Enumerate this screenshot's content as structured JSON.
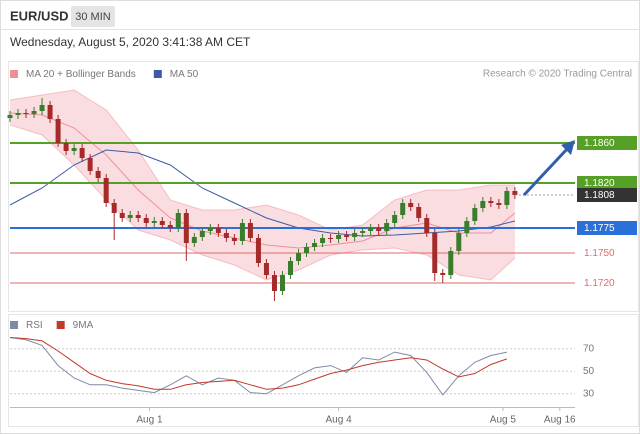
{
  "header": {
    "symbol": "EUR/USD",
    "timeframe": "30 MIN",
    "datetime": "Wednesday, August 5, 2020 3:41:38 AM CET"
  },
  "chart_data": [
    {
      "type": "candlestick",
      "annotation": "Research © 2020 Trading Central",
      "xlim": [
        0,
        70.5
      ],
      "ylim": [
        1.1698,
        1.1918
      ],
      "up_color": "#3a7d2c",
      "down_color": "#a52a2a",
      "candles": {
        "x": [
          0,
          1,
          2,
          3,
          4,
          5,
          6,
          7,
          8,
          9,
          10,
          11,
          12,
          13,
          14,
          15,
          16,
          17,
          18,
          19,
          20,
          21,
          22,
          23,
          24,
          25,
          26,
          27,
          28,
          29,
          30,
          31,
          32,
          33,
          34,
          35,
          36,
          37,
          38,
          39,
          40,
          41,
          42,
          43,
          44,
          45,
          46,
          47,
          48,
          49,
          50,
          51,
          52,
          53,
          54,
          55,
          56,
          57,
          58,
          59,
          60,
          61,
          62,
          63
        ],
        "open": [
          1.1885,
          1.1888,
          1.189,
          1.1889,
          1.1892,
          1.1898,
          1.1884,
          1.186,
          1.1852,
          1.1855,
          1.1845,
          1.1832,
          1.1825,
          1.18,
          1.179,
          1.1785,
          1.1788,
          1.1785,
          1.178,
          1.1782,
          1.1778,
          1.1775,
          1.179,
          1.176,
          1.1766,
          1.1772,
          1.1775,
          1.177,
          1.1765,
          1.1762,
          1.178,
          1.1765,
          1.174,
          1.1728,
          1.1712,
          1.1728,
          1.1742,
          1.175,
          1.1756,
          1.176,
          1.1765,
          1.1764,
          1.1768,
          1.1766,
          1.177,
          1.1772,
          1.1775,
          1.1772,
          1.178,
          1.1788,
          1.18,
          1.1796,
          1.1785,
          1.177,
          1.173,
          1.1728,
          1.1752,
          1.177,
          1.1782,
          1.1795,
          1.1802,
          1.18,
          1.1798,
          1.1812
        ],
        "high": [
          1.1892,
          1.1894,
          1.1894,
          1.1896,
          1.1905,
          1.1902,
          1.1888,
          1.1864,
          1.1859,
          1.1859,
          1.1849,
          1.1836,
          1.1829,
          1.1804,
          1.1794,
          1.1792,
          1.1792,
          1.1789,
          1.1786,
          1.1786,
          1.1782,
          1.1794,
          1.1794,
          1.177,
          1.1776,
          1.1779,
          1.1779,
          1.1774,
          1.1769,
          1.1784,
          1.1784,
          1.1769,
          1.1744,
          1.1732,
          1.1732,
          1.1746,
          1.1754,
          1.176,
          1.1764,
          1.1769,
          1.1769,
          1.1772,
          1.1772,
          1.1774,
          1.1776,
          1.1779,
          1.1779,
          1.1784,
          1.1792,
          1.1804,
          1.1804,
          1.18,
          1.1789,
          1.1774,
          1.1734,
          1.1756,
          1.1774,
          1.1786,
          1.1799,
          1.1806,
          1.1806,
          1.1804,
          1.1816,
          1.1816
        ],
        "low": [
          1.1881,
          1.1884,
          1.1885,
          1.1885,
          1.1888,
          1.188,
          1.1856,
          1.1848,
          1.1848,
          1.1841,
          1.1828,
          1.1821,
          1.1796,
          1.1763,
          1.1781,
          1.1781,
          1.1781,
          1.1776,
          1.1776,
          1.1774,
          1.1771,
          1.1771,
          1.1742,
          1.1756,
          1.1762,
          1.1768,
          1.1766,
          1.1761,
          1.1758,
          1.1758,
          1.1761,
          1.1736,
          1.1724,
          1.1702,
          1.1708,
          1.1724,
          1.1738,
          1.1746,
          1.1752,
          1.1756,
          1.176,
          1.176,
          1.1762,
          1.1762,
          1.1766,
          1.1768,
          1.1768,
          1.1768,
          1.1776,
          1.1784,
          1.1792,
          1.1781,
          1.1766,
          1.1722,
          1.172,
          1.1724,
          1.1748,
          1.1766,
          1.1778,
          1.1791,
          1.1796,
          1.1794,
          1.1794,
          1.1804
        ],
        "close": [
          1.1888,
          1.189,
          1.1889,
          1.1892,
          1.1898,
          1.1884,
          1.186,
          1.1852,
          1.1855,
          1.1845,
          1.1832,
          1.1825,
          1.18,
          1.179,
          1.1785,
          1.1788,
          1.1785,
          1.178,
          1.1782,
          1.1778,
          1.1775,
          1.179,
          1.176,
          1.1766,
          1.1772,
          1.1775,
          1.177,
          1.1765,
          1.1762,
          1.178,
          1.1765,
          1.174,
          1.1728,
          1.1712,
          1.1728,
          1.1742,
          1.175,
          1.1756,
          1.176,
          1.1765,
          1.1764,
          1.1768,
          1.1766,
          1.177,
          1.1772,
          1.1775,
          1.1772,
          1.178,
          1.1788,
          1.18,
          1.1796,
          1.1785,
          1.177,
          1.173,
          1.1728,
          1.1752,
          1.177,
          1.1782,
          1.1795,
          1.1802,
          1.18,
          1.1798,
          1.1812,
          1.1808
        ]
      },
      "series": [
        {
          "name": "MA 20 + Bollinger Bands",
          "color": "#f08f99",
          "x": [
            0,
            4,
            8,
            12,
            16,
            20,
            24,
            28,
            32,
            36,
            40,
            44,
            48,
            52,
            56,
            60,
            63
          ],
          "values": [
            1.189,
            1.1888,
            1.1875,
            1.1848,
            1.1813,
            1.1785,
            1.1772,
            1.1765,
            1.1758,
            1.1755,
            1.1758,
            1.1762,
            1.1775,
            1.178,
            1.177,
            1.177,
            1.179
          ],
          "upper": [
            1.1903,
            1.1908,
            1.1913,
            1.1893,
            1.1853,
            1.1803,
            1.1793,
            1.1793,
            1.1798,
            1.1788,
            1.1773,
            1.1778,
            1.1803,
            1.1813,
            1.1813,
            1.1818,
            1.1818
          ],
          "lower": [
            1.1878,
            1.1868,
            1.1838,
            1.1803,
            1.1773,
            1.1763,
            1.1748,
            1.1738,
            1.1723,
            1.1733,
            1.1748,
            1.1753,
            1.1755,
            1.1748,
            1.1728,
            1.1723,
            1.1745
          ]
        },
        {
          "name": "MA 50",
          "color": "#3b5ba5",
          "x": [
            0,
            4,
            8,
            12,
            16,
            20,
            24,
            28,
            32,
            36,
            40,
            44,
            48,
            52,
            56,
            60,
            63
          ],
          "values": [
            1.1798,
            1.1815,
            1.1838,
            1.1853,
            1.185,
            1.1838,
            1.1815,
            1.18,
            1.1785,
            1.1775,
            1.177,
            1.1767,
            1.1768,
            1.177,
            1.1772,
            1.1776,
            1.1782
          ]
        }
      ],
      "levels": [
        {
          "value": 1.186,
          "label": "1.1860",
          "color": "#56a027",
          "boxed": true
        },
        {
          "value": 1.182,
          "label": "1.1820",
          "color": "#56a027",
          "boxed": true
        },
        {
          "value": 1.1775,
          "label": "1.1775",
          "color": "#2b6fd8",
          "boxed": true
        },
        {
          "value": 1.175,
          "label": "1.1750",
          "color": "#e06a6a",
          "boxed": false
        },
        {
          "value": 1.172,
          "label": "1.1720",
          "color": "#e06a6a",
          "boxed": false
        }
      ],
      "last": {
        "value": 1.1808,
        "label": "1.1808",
        "color": "#333333"
      }
    },
    {
      "type": "line",
      "xlim": [
        0,
        70.5
      ],
      "ylim": [
        20,
        84
      ],
      "yticks": [
        70,
        50,
        30
      ],
      "xticks": [
        {
          "value": 17.4,
          "label": "Aug 1"
        },
        {
          "value": 41,
          "label": "Aug 4"
        },
        {
          "value": 61.5,
          "label": "Aug 5"
        },
        {
          "value": 68.6,
          "label": "Aug 16"
        }
      ],
      "series": [
        {
          "name": "RSI",
          "color": "#7f8aa6",
          "x": [
            0,
            2,
            4,
            6,
            8,
            10,
            12,
            14,
            16,
            18,
            20,
            22,
            24,
            26,
            28,
            30,
            32,
            34,
            36,
            38,
            40,
            42,
            44,
            46,
            48,
            50,
            52,
            54,
            56,
            58,
            60,
            62
          ],
          "values": [
            80,
            78,
            73,
            55,
            44,
            38,
            38,
            35,
            33,
            31,
            38,
            46,
            38,
            44,
            42,
            31,
            30,
            38,
            46,
            53,
            55,
            49,
            62,
            60,
            67,
            64,
            49,
            29,
            46,
            58,
            64,
            67
          ]
        },
        {
          "name": "9MA",
          "color": "#c0392b",
          "x": [
            0,
            2,
            4,
            6,
            8,
            10,
            12,
            14,
            16,
            18,
            20,
            22,
            24,
            26,
            28,
            30,
            32,
            34,
            36,
            38,
            40,
            42,
            44,
            46,
            48,
            50,
            52,
            54,
            56,
            58,
            60,
            62
          ],
          "values": [
            80,
            79,
            77,
            68,
            58,
            48,
            42,
            39,
            37,
            34,
            34,
            38,
            40,
            41,
            42,
            38,
            34,
            35,
            38,
            43,
            48,
            51,
            55,
            58,
            60,
            62,
            60,
            52,
            45,
            48,
            56,
            61
          ]
        }
      ]
    }
  ]
}
